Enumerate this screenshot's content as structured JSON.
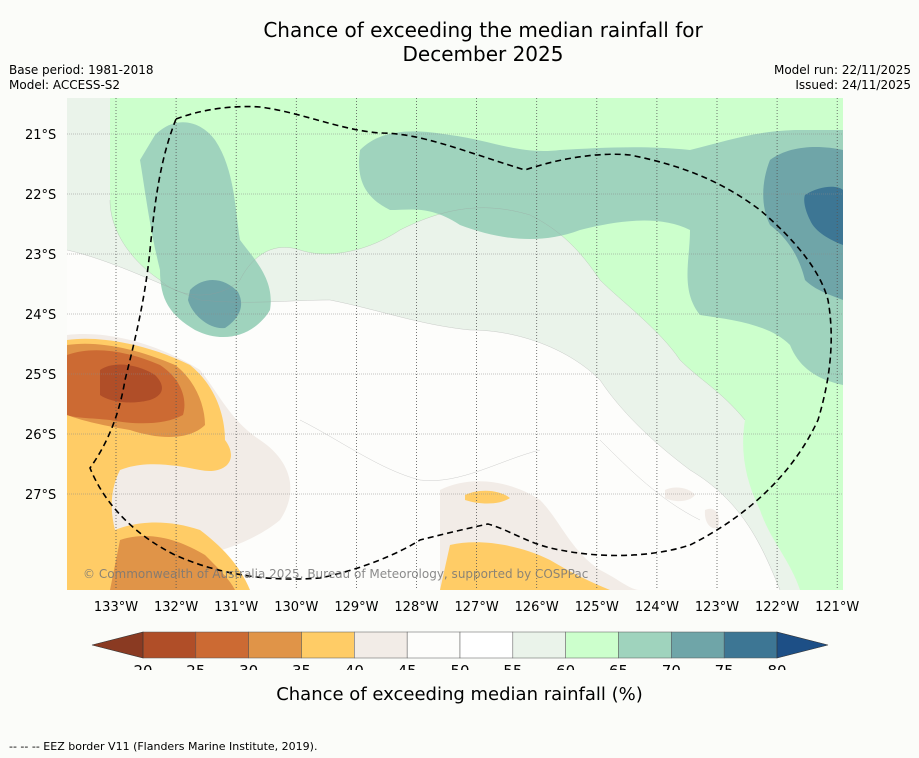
{
  "title": {
    "line1": "Chance of exceeding the median rainfall for",
    "line2": "December 2025"
  },
  "meta": {
    "base_period": "Base period: 1981-2018",
    "model": "Model: ACCESS-S2",
    "model_run": "Model run: 22/11/2025",
    "issued": "Issued: 24/11/2025"
  },
  "map": {
    "extent": {
      "lon": [
        -133.8,
        -120.9
      ],
      "lat": [
        -28.6,
        -20.4
      ]
    },
    "lat_ticks": [
      {
        "value": -21,
        "label": "21°S"
      },
      {
        "value": -22,
        "label": "22°S"
      },
      {
        "value": -23,
        "label": "23°S"
      },
      {
        "value": -24,
        "label": "24°S"
      },
      {
        "value": -25,
        "label": "25°S"
      },
      {
        "value": -26,
        "label": "26°S"
      },
      {
        "value": -27,
        "label": "27°S"
      }
    ],
    "lon_ticks": [
      {
        "value": -133,
        "label": "133°W"
      },
      {
        "value": -132,
        "label": "132°W"
      },
      {
        "value": -131,
        "label": "131°W"
      },
      {
        "value": -130,
        "label": "130°W"
      },
      {
        "value": -129,
        "label": "129°W"
      },
      {
        "value": -128,
        "label": "128°W"
      },
      {
        "value": -127,
        "label": "127°W"
      },
      {
        "value": -126,
        "label": "126°W"
      },
      {
        "value": -125,
        "label": "125°W"
      },
      {
        "value": -124,
        "label": "124°W"
      },
      {
        "value": -123,
        "label": "123°W"
      },
      {
        "value": -122,
        "label": "122°W"
      },
      {
        "value": -121,
        "label": "121°W"
      }
    ],
    "copyright": "© Commonwealth of Australia 2025, Bureau of Meteorology, supported by COSPPac"
  },
  "colorbar": {
    "bins": [
      {
        "from": 20,
        "to": 25,
        "color": "#b04e28"
      },
      {
        "from": 25,
        "to": 30,
        "color": "#cc6a33"
      },
      {
        "from": 30,
        "to": 35,
        "color": "#e09448"
      },
      {
        "from": 35,
        "to": 40,
        "color": "#ffcc66"
      },
      {
        "from": 40,
        "to": 45,
        "color": "#f2ece7"
      },
      {
        "from": 45,
        "to": 50,
        "color": "#fdfdfb"
      },
      {
        "from": 50,
        "to": 55,
        "color": "#ffffff"
      },
      {
        "from": 55,
        "to": 60,
        "color": "#eaf3ea"
      },
      {
        "from": 60,
        "to": 65,
        "color": "#ccffcc"
      },
      {
        "from": 65,
        "to": 70,
        "color": "#9fd3bd"
      },
      {
        "from": 70,
        "to": 75,
        "color": "#6fa5a8"
      },
      {
        "from": 75,
        "to": 80,
        "color": "#3d7694"
      }
    ],
    "under_color": "#8a3a22",
    "over_color": "#1d4f86",
    "tick_labels": [
      "20",
      "25",
      "30",
      "35",
      "40",
      "45",
      "50",
      "55",
      "60",
      "65",
      "70",
      "75",
      "80"
    ],
    "label": "Chance of exceeding median rainfall (%)"
  },
  "footnote": "-- -- -- EEZ border V11 (Flanders Marine Institute, 2019)."
}
